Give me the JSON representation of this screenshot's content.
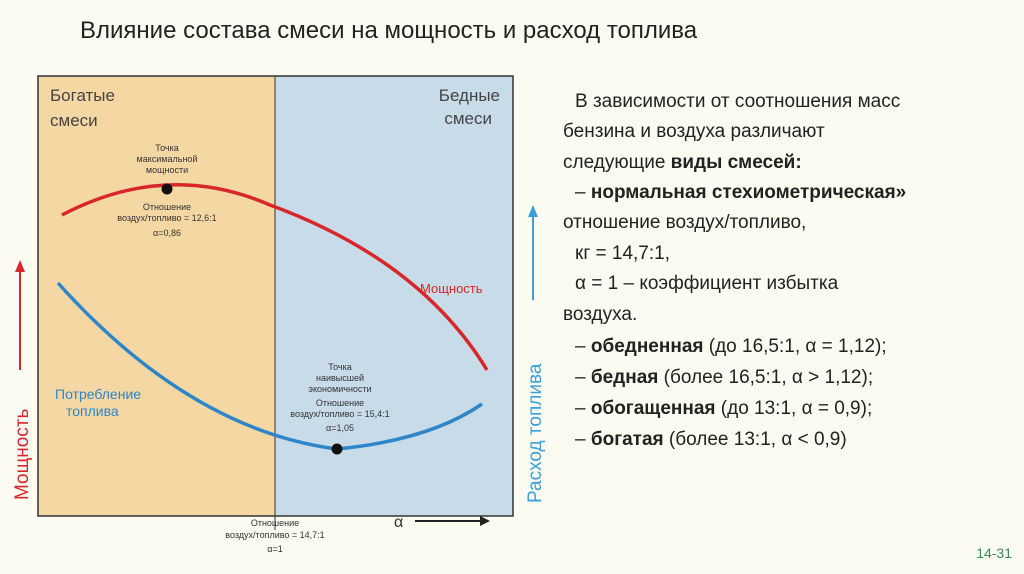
{
  "header": {
    "title": "Влияние состава смеси на мощность и расход топлива"
  },
  "diagram": {
    "rich": [
      "Богатые",
      "смеси"
    ],
    "lean": [
      "Бедные",
      "смеси"
    ],
    "max_power": {
      "label": [
        "Точка",
        "максимальной",
        "мощности"
      ],
      "ratio": [
        "Отношение",
        "воздух/топливо = 12,6:1"
      ],
      "alpha": "α=0,86"
    },
    "max_economy": {
      "label": [
        "Точка",
        "наивысшей",
        "экономичности"
      ],
      "ratio": [
        "Отношение",
        "воздух/топливо = 15,4:1"
      ],
      "alpha": "α=1,05"
    },
    "stoich": {
      "ratio": [
        "Отношение",
        "воздух/топливо = 14,7:1"
      ],
      "alpha": "α=1"
    },
    "power_label": "Мощность",
    "consumption_label": [
      "Потребление",
      "топлива"
    ],
    "x_axis": "α",
    "y_axis": "Мощность",
    "y2_axis": "Расход топлива"
  },
  "text": {
    "lines": [
      [
        "В зависимости от соотношения масс"
      ],
      [
        "бензина и воздуха различают"
      ],
      [
        "следующие ",
        "виды смесей:"
      ],
      [
        "– ",
        "нормальная стехиометрическая»"
      ],
      [
        "отношение воздух/топливо,"
      ],
      [
        "кг = 14,7:1,"
      ],
      [
        "α = 1 – коэффициент избытка"
      ],
      [
        "воздуха."
      ],
      [
        "– ",
        "обедненная",
        " (до 16,5:1, α = 1,12);"
      ],
      [
        "– ",
        "бедная",
        " (более 16,5:1, α > 1,12);"
      ],
      [
        "– ",
        "обогащенная",
        " (до 13:1, α = 0,9);"
      ],
      [
        "– ",
        "богатая",
        " (более 13:1, α < 0,9)"
      ]
    ]
  },
  "footer": {
    "page": "14-31"
  }
}
